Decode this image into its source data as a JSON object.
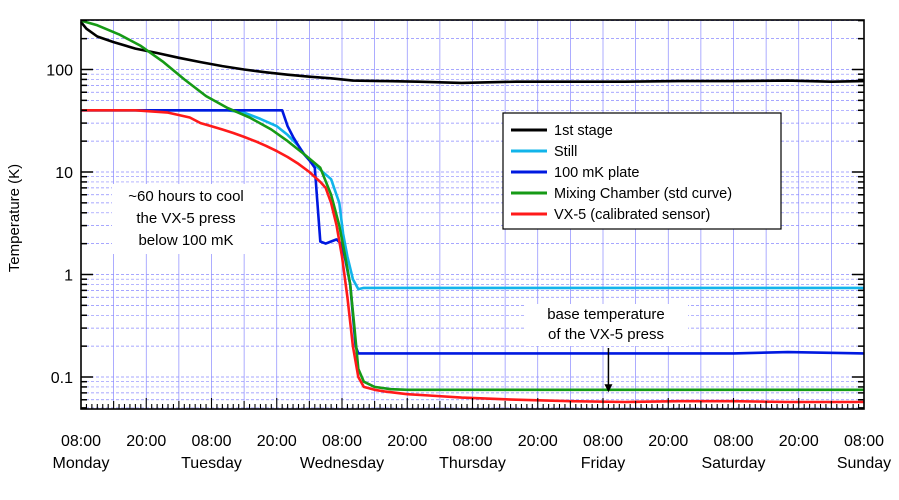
{
  "chart_data": {
    "type": "line",
    "ylabel": "Temperature (K)",
    "xlabel": "",
    "xlim": [
      0,
      144
    ],
    "ylim": [
      0.05,
      300
    ],
    "y_scale": "log",
    "grid": true,
    "legend_placement": "center-right",
    "x_ticks": [
      {
        "x": 0,
        "time": "08:00",
        "day": "Monday"
      },
      {
        "x": 12,
        "time": "20:00",
        "day": ""
      },
      {
        "x": 24,
        "time": "08:00",
        "day": "Tuesday"
      },
      {
        "x": 36,
        "time": "20:00",
        "day": ""
      },
      {
        "x": 48,
        "time": "08:00",
        "day": "Wednesday"
      },
      {
        "x": 60,
        "time": "20:00",
        "day": ""
      },
      {
        "x": 72,
        "time": "08:00",
        "day": "Thursday"
      },
      {
        "x": 84,
        "time": "20:00",
        "day": ""
      },
      {
        "x": 96,
        "time": "08:00",
        "day": "Friday"
      },
      {
        "x": 108,
        "time": "20:00",
        "day": ""
      },
      {
        "x": 120,
        "time": "08:00",
        "day": "Saturday"
      },
      {
        "x": 132,
        "time": "20:00",
        "day": ""
      },
      {
        "x": 144,
        "time": "08:00",
        "day": "Sunday"
      }
    ],
    "y_ticks": [
      {
        "value": 0.1,
        "label": "0.1"
      },
      {
        "value": 1,
        "label": "1"
      },
      {
        "value": 10,
        "label": "10"
      },
      {
        "value": 100,
        "label": "100"
      }
    ],
    "series": [
      {
        "name": "1st stage",
        "color": "#000000",
        "x": [
          0,
          1,
          3,
          6,
          10,
          14,
          18,
          22,
          26,
          30,
          34,
          38,
          42,
          46,
          50,
          56,
          62,
          70,
          80,
          90,
          100,
          110,
          120,
          130,
          138,
          144
        ],
        "y": [
          290,
          250,
          210,
          185,
          160,
          145,
          130,
          118,
          108,
          100,
          94,
          89,
          85,
          82,
          78,
          77,
          76,
          74,
          76,
          76,
          76,
          77,
          77,
          78,
          76,
          77
        ]
      },
      {
        "name": "Still",
        "color": "#11b4ea",
        "x": [
          0,
          10,
          22,
          27,
          30,
          33,
          36,
          38,
          40,
          41,
          42,
          44,
          46,
          47.5,
          48.2,
          49,
          50,
          51,
          52,
          54,
          60,
          80,
          100,
          120,
          144
        ],
        "y": [
          40,
          40,
          40,
          40,
          38,
          33,
          28,
          23,
          18,
          15,
          13,
          10.5,
          8.5,
          5,
          2.5,
          1.5,
          0.9,
          0.72,
          0.74,
          0.74,
          0.74,
          0.74,
          0.74,
          0.74,
          0.74
        ]
      },
      {
        "name": "100 mK plate",
        "color": "#0019e0",
        "x": [
          0,
          10,
          20,
          30,
          35,
          36,
          37,
          38,
          39,
          40,
          41,
          42,
          43,
          44,
          45,
          46,
          47,
          47.8,
          48.5,
          49,
          49.5,
          50,
          50.5,
          51,
          52,
          60,
          80,
          100,
          120,
          130,
          144
        ],
        "y": [
          40,
          40,
          40,
          40,
          40,
          40,
          40,
          28,
          22,
          18,
          15,
          13,
          11,
          2.1,
          2,
          2.1,
          2.2,
          2,
          1.5,
          1.1,
          0.8,
          0.4,
          0.2,
          0.17,
          0.17,
          0.17,
          0.17,
          0.17,
          0.17,
          0.175,
          0.17
        ]
      },
      {
        "name": "Mixing Chamber (std curve)",
        "color": "#169a16",
        "x": [
          0,
          3,
          7,
          11,
          15,
          19,
          23,
          27,
          31,
          35,
          38,
          41,
          44,
          46,
          47.5,
          48.5,
          49.5,
          50.3,
          51,
          52,
          54,
          57,
          60,
          70,
          80,
          100,
          120,
          144
        ],
        "y": [
          300,
          270,
          220,
          170,
          120,
          80,
          55,
          42,
          34,
          26,
          20,
          15,
          11,
          6,
          3,
          1.6,
          0.8,
          0.3,
          0.12,
          0.09,
          0.08,
          0.076,
          0.075,
          0.075,
          0.075,
          0.075,
          0.075,
          0.075
        ]
      },
      {
        "name": "VX-5 (calibrated sensor)",
        "color": "#ff1a1a",
        "x": [
          0,
          10,
          16,
          20,
          22,
          24,
          26,
          28,
          30,
          32,
          34,
          36,
          38,
          40,
          42,
          44,
          45,
          46,
          47,
          48,
          49,
          50,
          51,
          52,
          54,
          56,
          60,
          64,
          70,
          80,
          90,
          100,
          110,
          120,
          130,
          144
        ],
        "y": [
          40,
          40,
          38,
          34,
          30,
          28,
          26,
          24,
          22,
          20,
          18,
          16,
          14,
          12,
          10,
          8,
          7,
          5,
          3,
          1.5,
          0.6,
          0.2,
          0.1,
          0.08,
          0.075,
          0.072,
          0.068,
          0.066,
          0.063,
          0.06,
          0.058,
          0.057,
          0.058,
          0.058,
          0.057,
          0.057
        ]
      }
    ],
    "annotations": [
      {
        "lines": [
          "~60 hours to cool",
          "the VX-5 press",
          "below 100 mK"
        ]
      },
      {
        "lines": [
          "base temperature",
          "of the VX-5 press"
        ],
        "arrow_to": {
          "x": 97,
          "y": 0.062
        }
      }
    ]
  }
}
